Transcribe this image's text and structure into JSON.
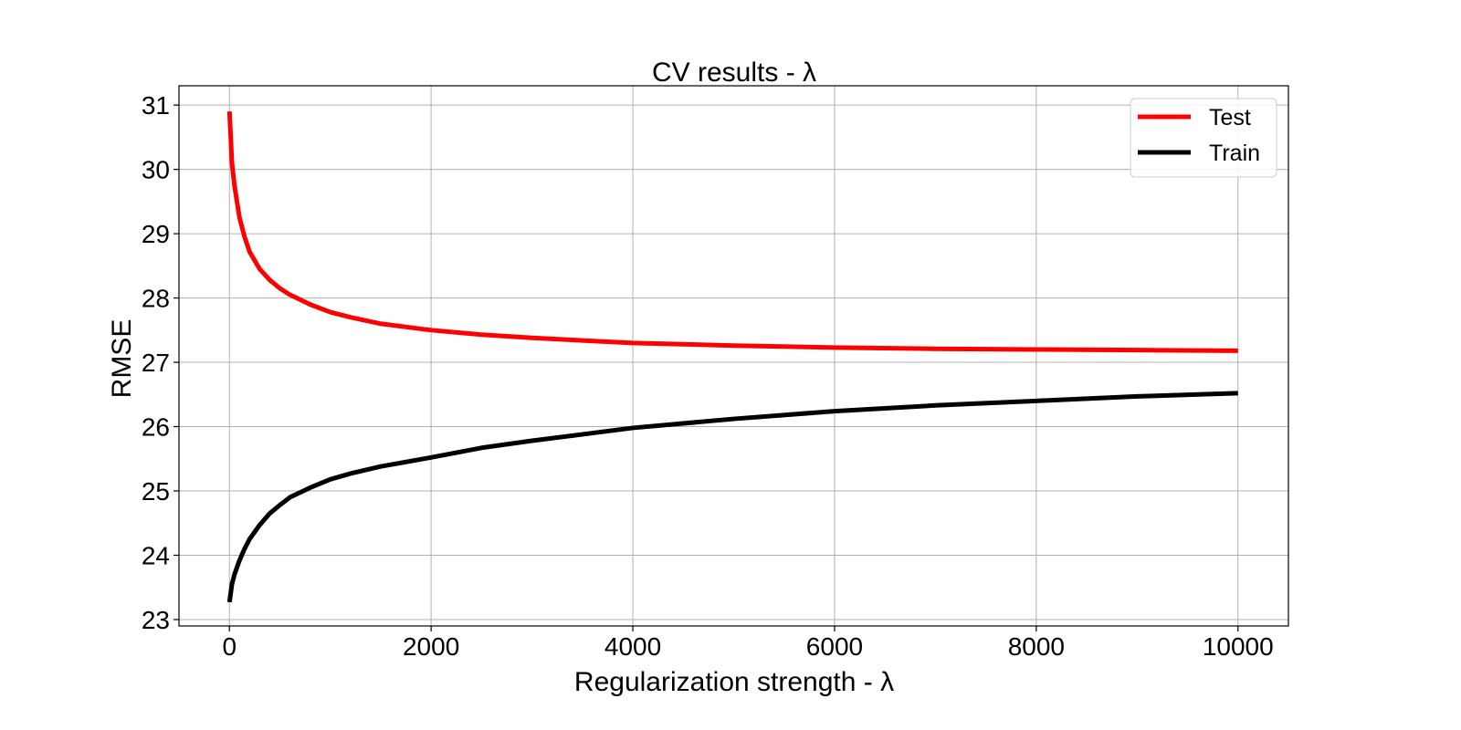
{
  "chart_data": {
    "type": "line",
    "title": "CV results - λ",
    "xlabel": "Regularization strength - λ",
    "ylabel": "RMSE",
    "xlim": [
      -500,
      10500
    ],
    "ylim": [
      22.9,
      31.3
    ],
    "x_ticks": [
      0,
      2000,
      4000,
      6000,
      8000,
      10000
    ],
    "y_ticks": [
      23,
      24,
      25,
      26,
      27,
      28,
      29,
      30,
      31
    ],
    "grid": true,
    "legend_position": "top-right",
    "x": [
      1,
      25,
      50,
      100,
      150,
      200,
      300,
      400,
      500,
      600,
      800,
      1000,
      1200,
      1500,
      2000,
      2500,
      3000,
      4000,
      5000,
      6000,
      7000,
      8000,
      9000,
      10000
    ],
    "series": [
      {
        "name": "Test",
        "color": "#ff0000",
        "values": [
          30.9,
          30.1,
          29.75,
          29.25,
          28.95,
          28.72,
          28.45,
          28.28,
          28.15,
          28.05,
          27.9,
          27.78,
          27.7,
          27.6,
          27.5,
          27.43,
          27.38,
          27.3,
          27.26,
          27.23,
          27.21,
          27.2,
          27.19,
          27.18
        ]
      },
      {
        "name": "Train",
        "color": "#000000",
        "values": [
          23.27,
          23.55,
          23.7,
          23.92,
          24.1,
          24.25,
          24.47,
          24.65,
          24.78,
          24.9,
          25.05,
          25.18,
          25.27,
          25.38,
          25.52,
          25.67,
          25.78,
          25.98,
          26.12,
          26.24,
          26.33,
          26.4,
          26.47,
          26.52
        ]
      }
    ]
  }
}
